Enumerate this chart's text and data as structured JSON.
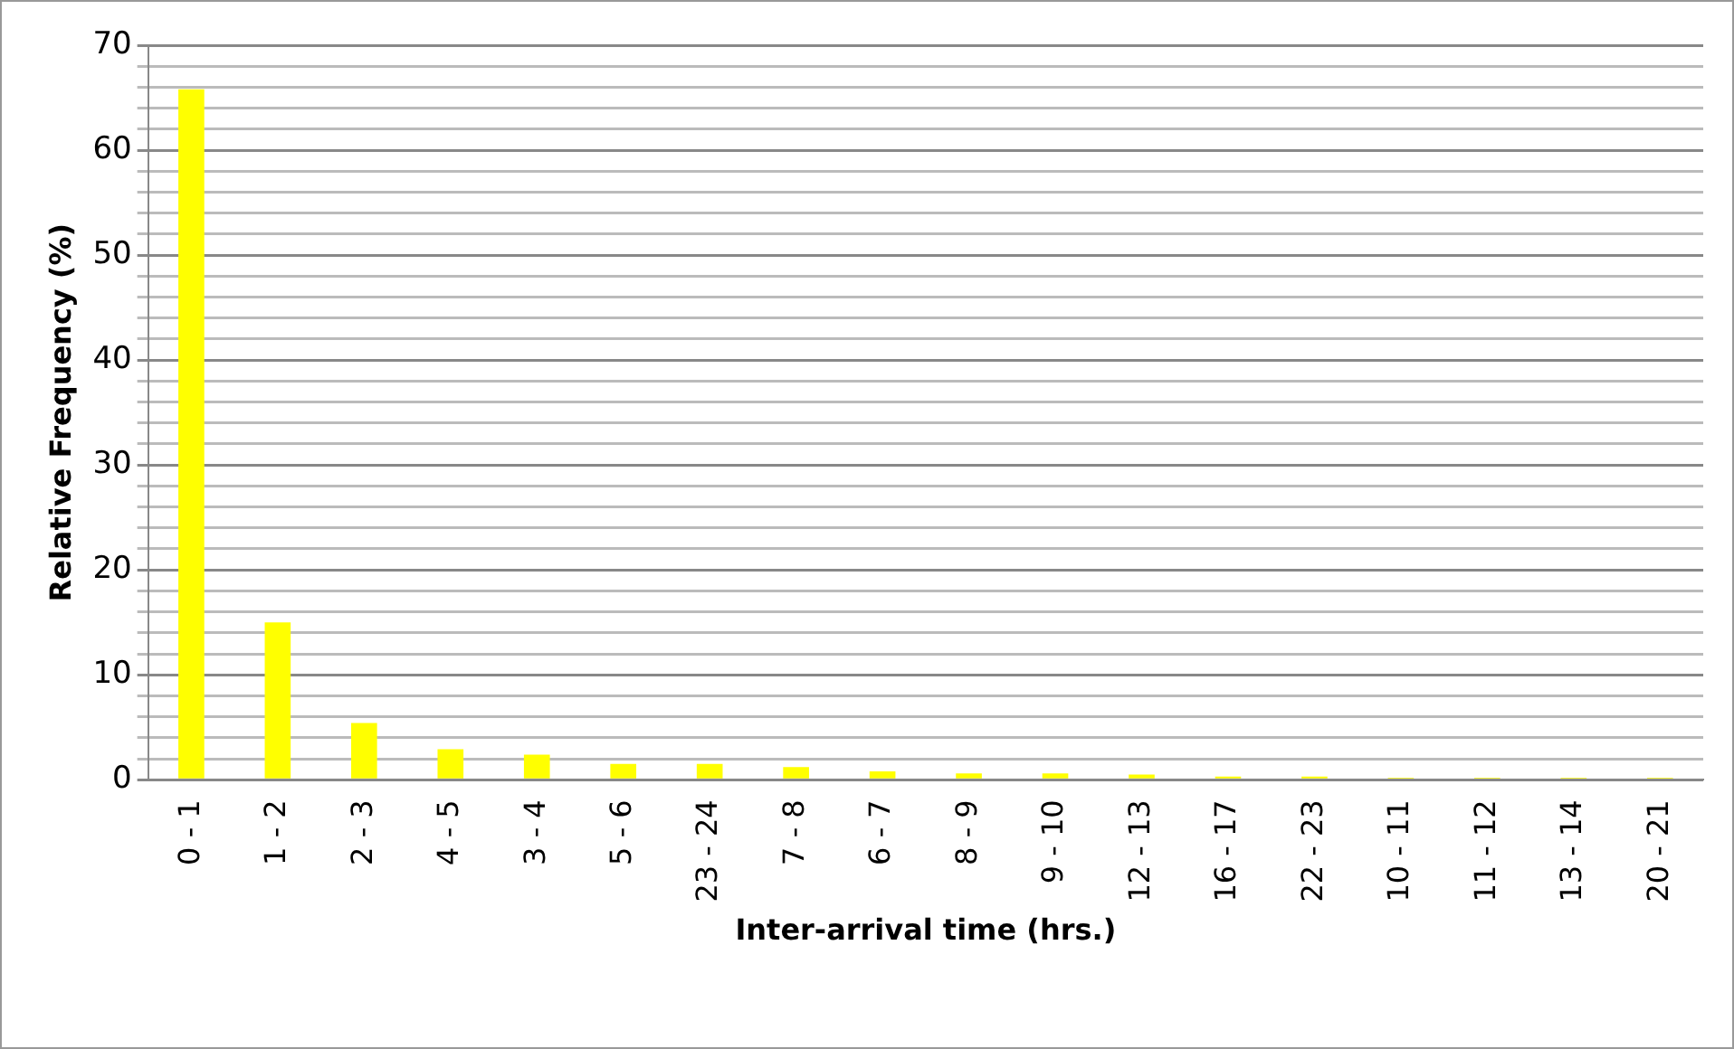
{
  "chart_data": {
    "type": "bar",
    "xlabel": "Inter-arrival time (hrs.)",
    "ylabel": "Relative Frequency (%)",
    "categories": [
      "0 - 1",
      "1 - 2",
      "2 - 3",
      "4 - 5",
      "3 - 4",
      "5 - 6",
      "23 - 24",
      "7 - 8",
      "6 - 7",
      "8 - 9",
      "9 - 10",
      "12 - 13",
      "16 - 17",
      "22 - 23",
      "10 - 11",
      "11 - 12",
      "13 - 14",
      "20 - 21"
    ],
    "values": [
      65.8,
      15,
      5.4,
      2.9,
      2.4,
      1.5,
      1.5,
      1.2,
      0.8,
      0.6,
      0.6,
      0.5,
      0.3,
      0.3,
      0.2,
      0.2,
      0.2,
      0.2
    ],
    "color": "#ffff00",
    "ylim": [
      0,
      70
    ],
    "yticks": [
      0,
      {
        "value": 2,
        "label": null
      },
      {
        "value": 4,
        "label": null
      },
      {
        "value": 6,
        "label": null
      },
      {
        "value": 8,
        "label": null
      },
      10,
      {
        "value": 12,
        "label": null
      },
      {
        "value": 14,
        "label": null
      },
      {
        "value": 16,
        "label": null
      },
      {
        "value": 18,
        "label": null
      },
      20,
      {
        "value": 22,
        "label": null
      },
      {
        "value": 24,
        "label": null
      },
      {
        "value": 26,
        "label": null
      },
      {
        "value": 28,
        "label": null
      },
      30,
      {
        "value": 32,
        "label": null
      },
      {
        "value": 34,
        "label": null
      },
      {
        "value": 36,
        "label": null
      },
      {
        "value": 38,
        "label": null
      },
      40,
      {
        "value": 42,
        "label": null
      },
      {
        "value": 44,
        "label": null
      },
      {
        "value": 46,
        "label": null
      },
      {
        "value": 48,
        "label": null
      },
      50,
      {
        "value": 52,
        "label": null
      },
      {
        "value": 54,
        "label": null
      },
      {
        "value": 56,
        "label": null
      },
      {
        "value": 58,
        "label": null
      },
      60,
      {
        "value": 62,
        "label": null
      },
      {
        "value": 64,
        "label": null
      },
      {
        "value": 66,
        "label": null
      },
      {
        "value": 68,
        "label": null
      },
      70
    ],
    "grid": "y",
    "legend": false
  }
}
